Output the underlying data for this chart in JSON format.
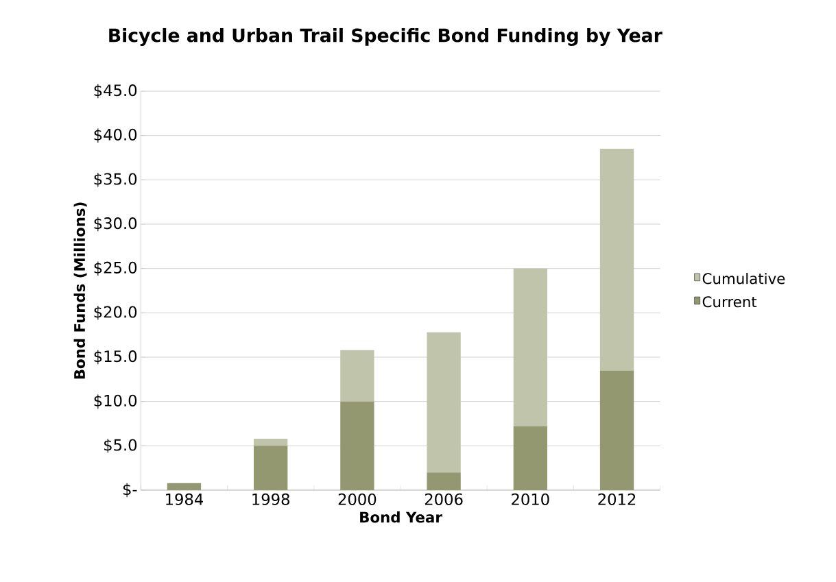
{
  "chart_data": {
    "type": "bar",
    "stacked": true,
    "title": "Bicycle and Urban Trail Specific Bond Funding by Year",
    "xlabel": "Bond Year",
    "ylabel": "Bond Funds (Millions)",
    "categories": [
      "1984",
      "1998",
      "2000",
      "2006",
      "2010",
      "2012"
    ],
    "series": [
      {
        "name": "Current",
        "color": "#939871",
        "values": [
          0.8,
          5.0,
          10.0,
          2.0,
          7.2,
          13.5
        ]
      },
      {
        "name": "Cumulative",
        "color": "#c0c4aa",
        "values": [
          0,
          0.8,
          5.8,
          15.8,
          17.8,
          25.0
        ]
      }
    ],
    "ylim": [
      0,
      45
    ],
    "yticks": [
      {
        "value": 0,
        "label": "$-"
      },
      {
        "value": 5,
        "label": "$5.0"
      },
      {
        "value": 10,
        "label": "$10.0"
      },
      {
        "value": 15,
        "label": "$15.0"
      },
      {
        "value": 20,
        "label": "$20.0"
      },
      {
        "value": 25,
        "label": "$25.0"
      },
      {
        "value": 30,
        "label": "$30.0"
      },
      {
        "value": 35,
        "label": "$35.0"
      },
      {
        "value": 40,
        "label": "$40.0"
      },
      {
        "value": 45,
        "label": "$45.0"
      }
    ],
    "grid": "y",
    "legend": "right"
  }
}
